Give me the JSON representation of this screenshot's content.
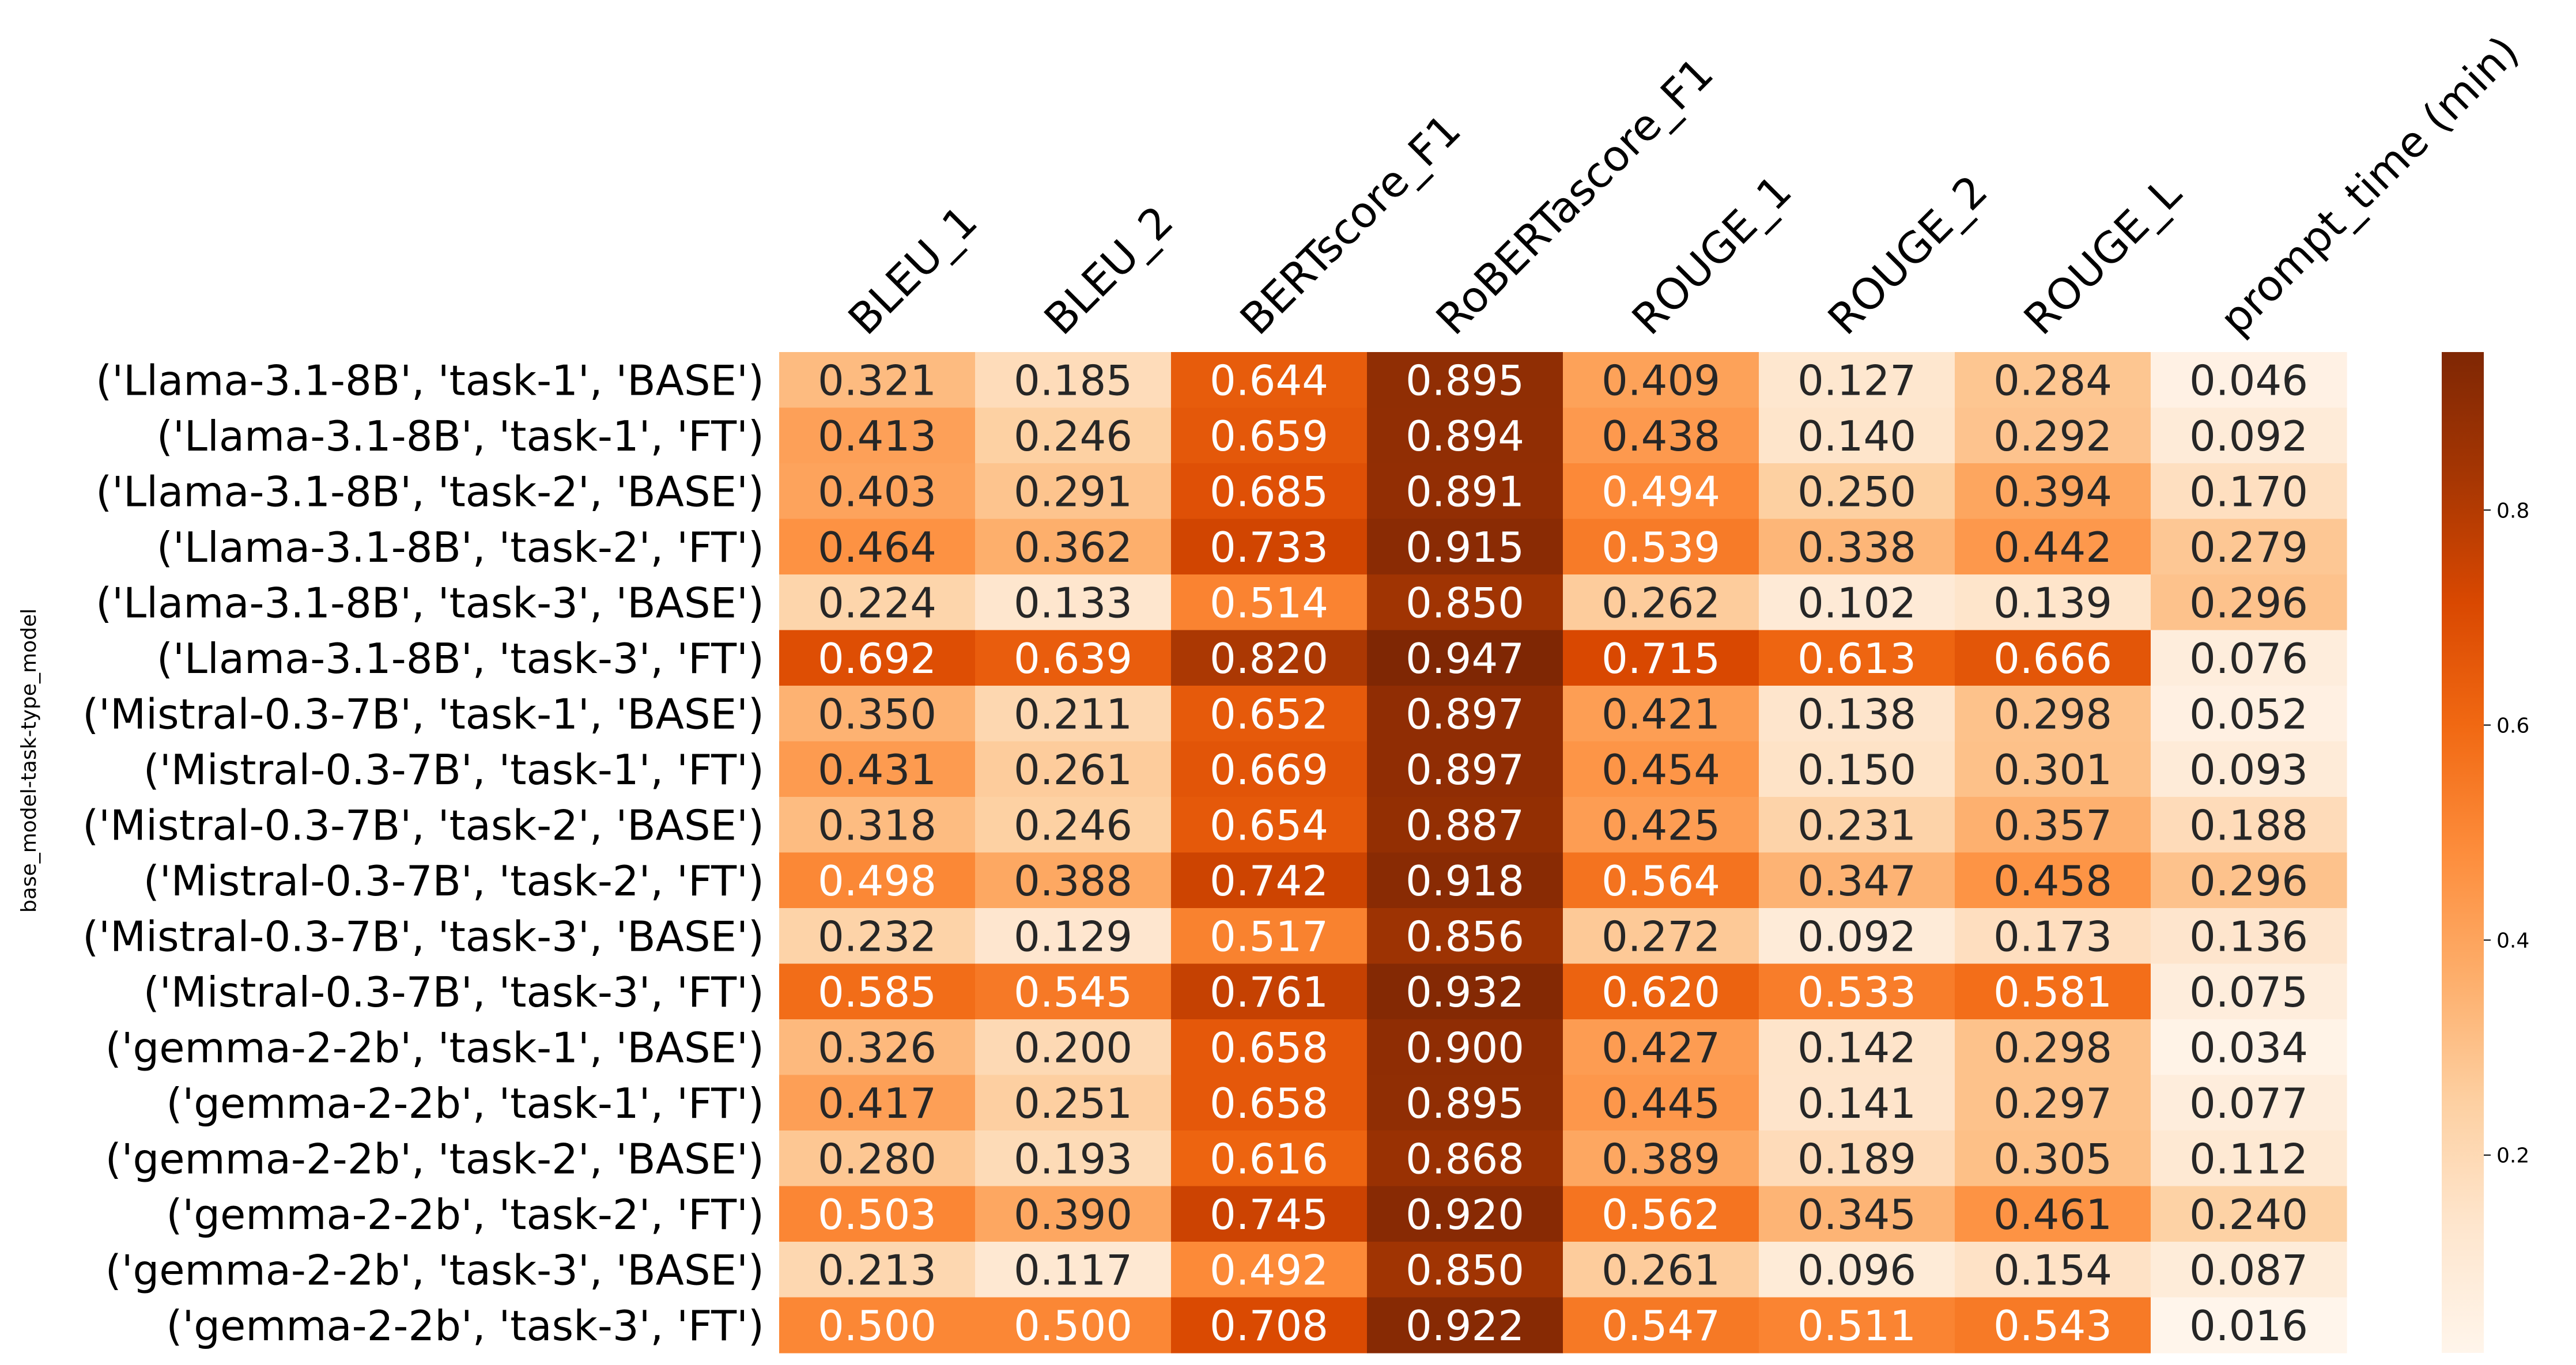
{
  "chart_data": {
    "type": "heatmap",
    "ylabel": "base_model-task-type_model",
    "columns": [
      "BLEU_1",
      "BLEU_2",
      "BERTscore_F1",
      "RoBERTascore_F1",
      "ROUGE_1",
      "ROUGE_2",
      "ROUGE_L",
      "prompt_time (min)"
    ],
    "rows": [
      "('Llama-3.1-8B', 'task-1', 'BASE')",
      "('Llama-3.1-8B', 'task-1', 'FT')",
      "('Llama-3.1-8B', 'task-2', 'BASE')",
      "('Llama-3.1-8B', 'task-2', 'FT')",
      "('Llama-3.1-8B', 'task-3', 'BASE')",
      "('Llama-3.1-8B', 'task-3', 'FT')",
      "('Mistral-0.3-7B', 'task-1', 'BASE')",
      "('Mistral-0.3-7B', 'task-1', 'FT')",
      "('Mistral-0.3-7B', 'task-2', 'BASE')",
      "('Mistral-0.3-7B', 'task-2', 'FT')",
      "('Mistral-0.3-7B', 'task-3', 'BASE')",
      "('Mistral-0.3-7B', 'task-3', 'FT')",
      "('gemma-2-2b', 'task-1', 'BASE')",
      "('gemma-2-2b', 'task-1', 'FT')",
      "('gemma-2-2b', 'task-2', 'BASE')",
      "('gemma-2-2b', 'task-2', 'FT')",
      "('gemma-2-2b', 'task-3', 'BASE')",
      "('gemma-2-2b', 'task-3', 'FT')"
    ],
    "values": [
      [
        "0.321",
        "0.185",
        "0.644",
        "0.895",
        "0.409",
        "0.127",
        "0.284",
        "0.046"
      ],
      [
        "0.413",
        "0.246",
        "0.659",
        "0.894",
        "0.438",
        "0.140",
        "0.292",
        "0.092"
      ],
      [
        "0.403",
        "0.291",
        "0.685",
        "0.891",
        "0.494",
        "0.250",
        "0.394",
        "0.170"
      ],
      [
        "0.464",
        "0.362",
        "0.733",
        "0.915",
        "0.539",
        "0.338",
        "0.442",
        "0.279"
      ],
      [
        "0.224",
        "0.133",
        "0.514",
        "0.850",
        "0.262",
        "0.102",
        "0.139",
        "0.296"
      ],
      [
        "0.692",
        "0.639",
        "0.820",
        "0.947",
        "0.715",
        "0.613",
        "0.666",
        "0.076"
      ],
      [
        "0.350",
        "0.211",
        "0.652",
        "0.897",
        "0.421",
        "0.138",
        "0.298",
        "0.052"
      ],
      [
        "0.431",
        "0.261",
        "0.669",
        "0.897",
        "0.454",
        "0.150",
        "0.301",
        "0.093"
      ],
      [
        "0.318",
        "0.246",
        "0.654",
        "0.887",
        "0.425",
        "0.231",
        "0.357",
        "0.188"
      ],
      [
        "0.498",
        "0.388",
        "0.742",
        "0.918",
        "0.564",
        "0.347",
        "0.458",
        "0.296"
      ],
      [
        "0.232",
        "0.129",
        "0.517",
        "0.856",
        "0.272",
        "0.092",
        "0.173",
        "0.136"
      ],
      [
        "0.585",
        "0.545",
        "0.761",
        "0.932",
        "0.620",
        "0.533",
        "0.581",
        "0.075"
      ],
      [
        "0.326",
        "0.200",
        "0.658",
        "0.900",
        "0.427",
        "0.142",
        "0.298",
        "0.034"
      ],
      [
        "0.417",
        "0.251",
        "0.658",
        "0.895",
        "0.445",
        "0.141",
        "0.297",
        "0.077"
      ],
      [
        "0.280",
        "0.193",
        "0.616",
        "0.868",
        "0.389",
        "0.189",
        "0.305",
        "0.112"
      ],
      [
        "0.503",
        "0.390",
        "0.745",
        "0.920",
        "0.562",
        "0.345",
        "0.461",
        "0.240"
      ],
      [
        "0.213",
        "0.117",
        "0.492",
        "0.850",
        "0.261",
        "0.096",
        "0.154",
        "0.087"
      ],
      [
        "0.500",
        "0.500",
        "0.708",
        "0.922",
        "0.547",
        "0.511",
        "0.543",
        "0.016"
      ]
    ],
    "colormap": "Oranges",
    "vmin": 0.016,
    "vmax": 0.947,
    "colorbar_ticks": [
      "0.2",
      "0.4",
      "0.6",
      "0.8"
    ]
  }
}
